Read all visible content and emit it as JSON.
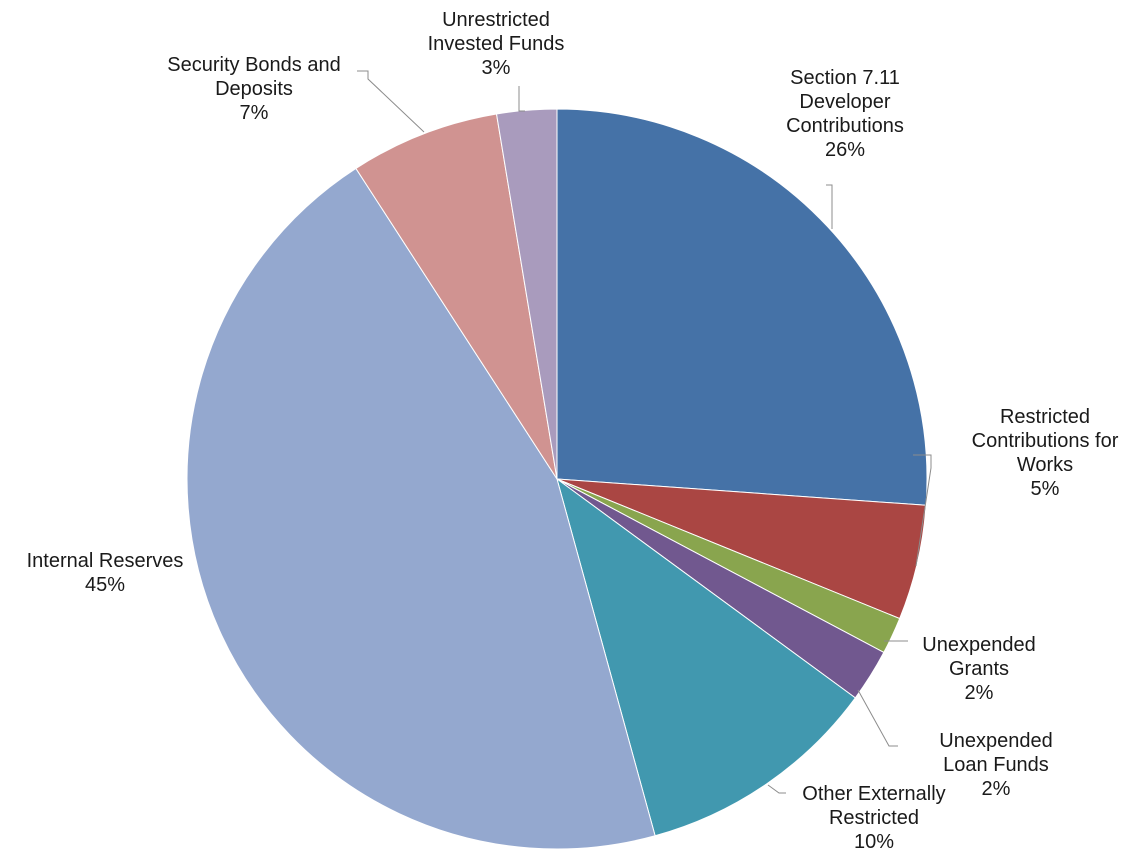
{
  "chart_data": {
    "type": "pie",
    "title": "",
    "start_angle_deg": 0,
    "direction": "clockwise",
    "slices": [
      {
        "label_lines": [
          "Section 7.11",
          "Developer",
          "Contributions"
        ],
        "value_label": "26%",
        "value": 26.0,
        "color": "#4572a7"
      },
      {
        "label_lines": [
          "Restricted",
          "Contributions for",
          "Works"
        ],
        "value_label": "5%",
        "value": 5.0,
        "color": "#aa4643"
      },
      {
        "label_lines": [
          "Unexpended",
          "Grants"
        ],
        "value_label": "2%",
        "value": 1.6,
        "color": "#89a54e"
      },
      {
        "label_lines": [
          "Unexpended",
          "Loan Funds"
        ],
        "value_label": "2%",
        "value": 2.3,
        "color": "#71588f"
      },
      {
        "label_lines": [
          "Other Externally",
          "Restricted"
        ],
        "value_label": "10%",
        "value": 10.6,
        "color": "#4198af"
      },
      {
        "label_lines": [
          "Internal Reserves"
        ],
        "value_label": "45%",
        "value": 44.9,
        "color": "#94a8cf"
      },
      {
        "label_lines": [
          "Security Bonds and",
          "Deposits"
        ],
        "value_label": "7%",
        "value": 6.5,
        "color": "#d09391"
      },
      {
        "label_lines": [
          "Unrestricted",
          "Invested Funds"
        ],
        "value_label": "3%",
        "value": 2.6,
        "color": "#a99bbd"
      }
    ]
  }
}
